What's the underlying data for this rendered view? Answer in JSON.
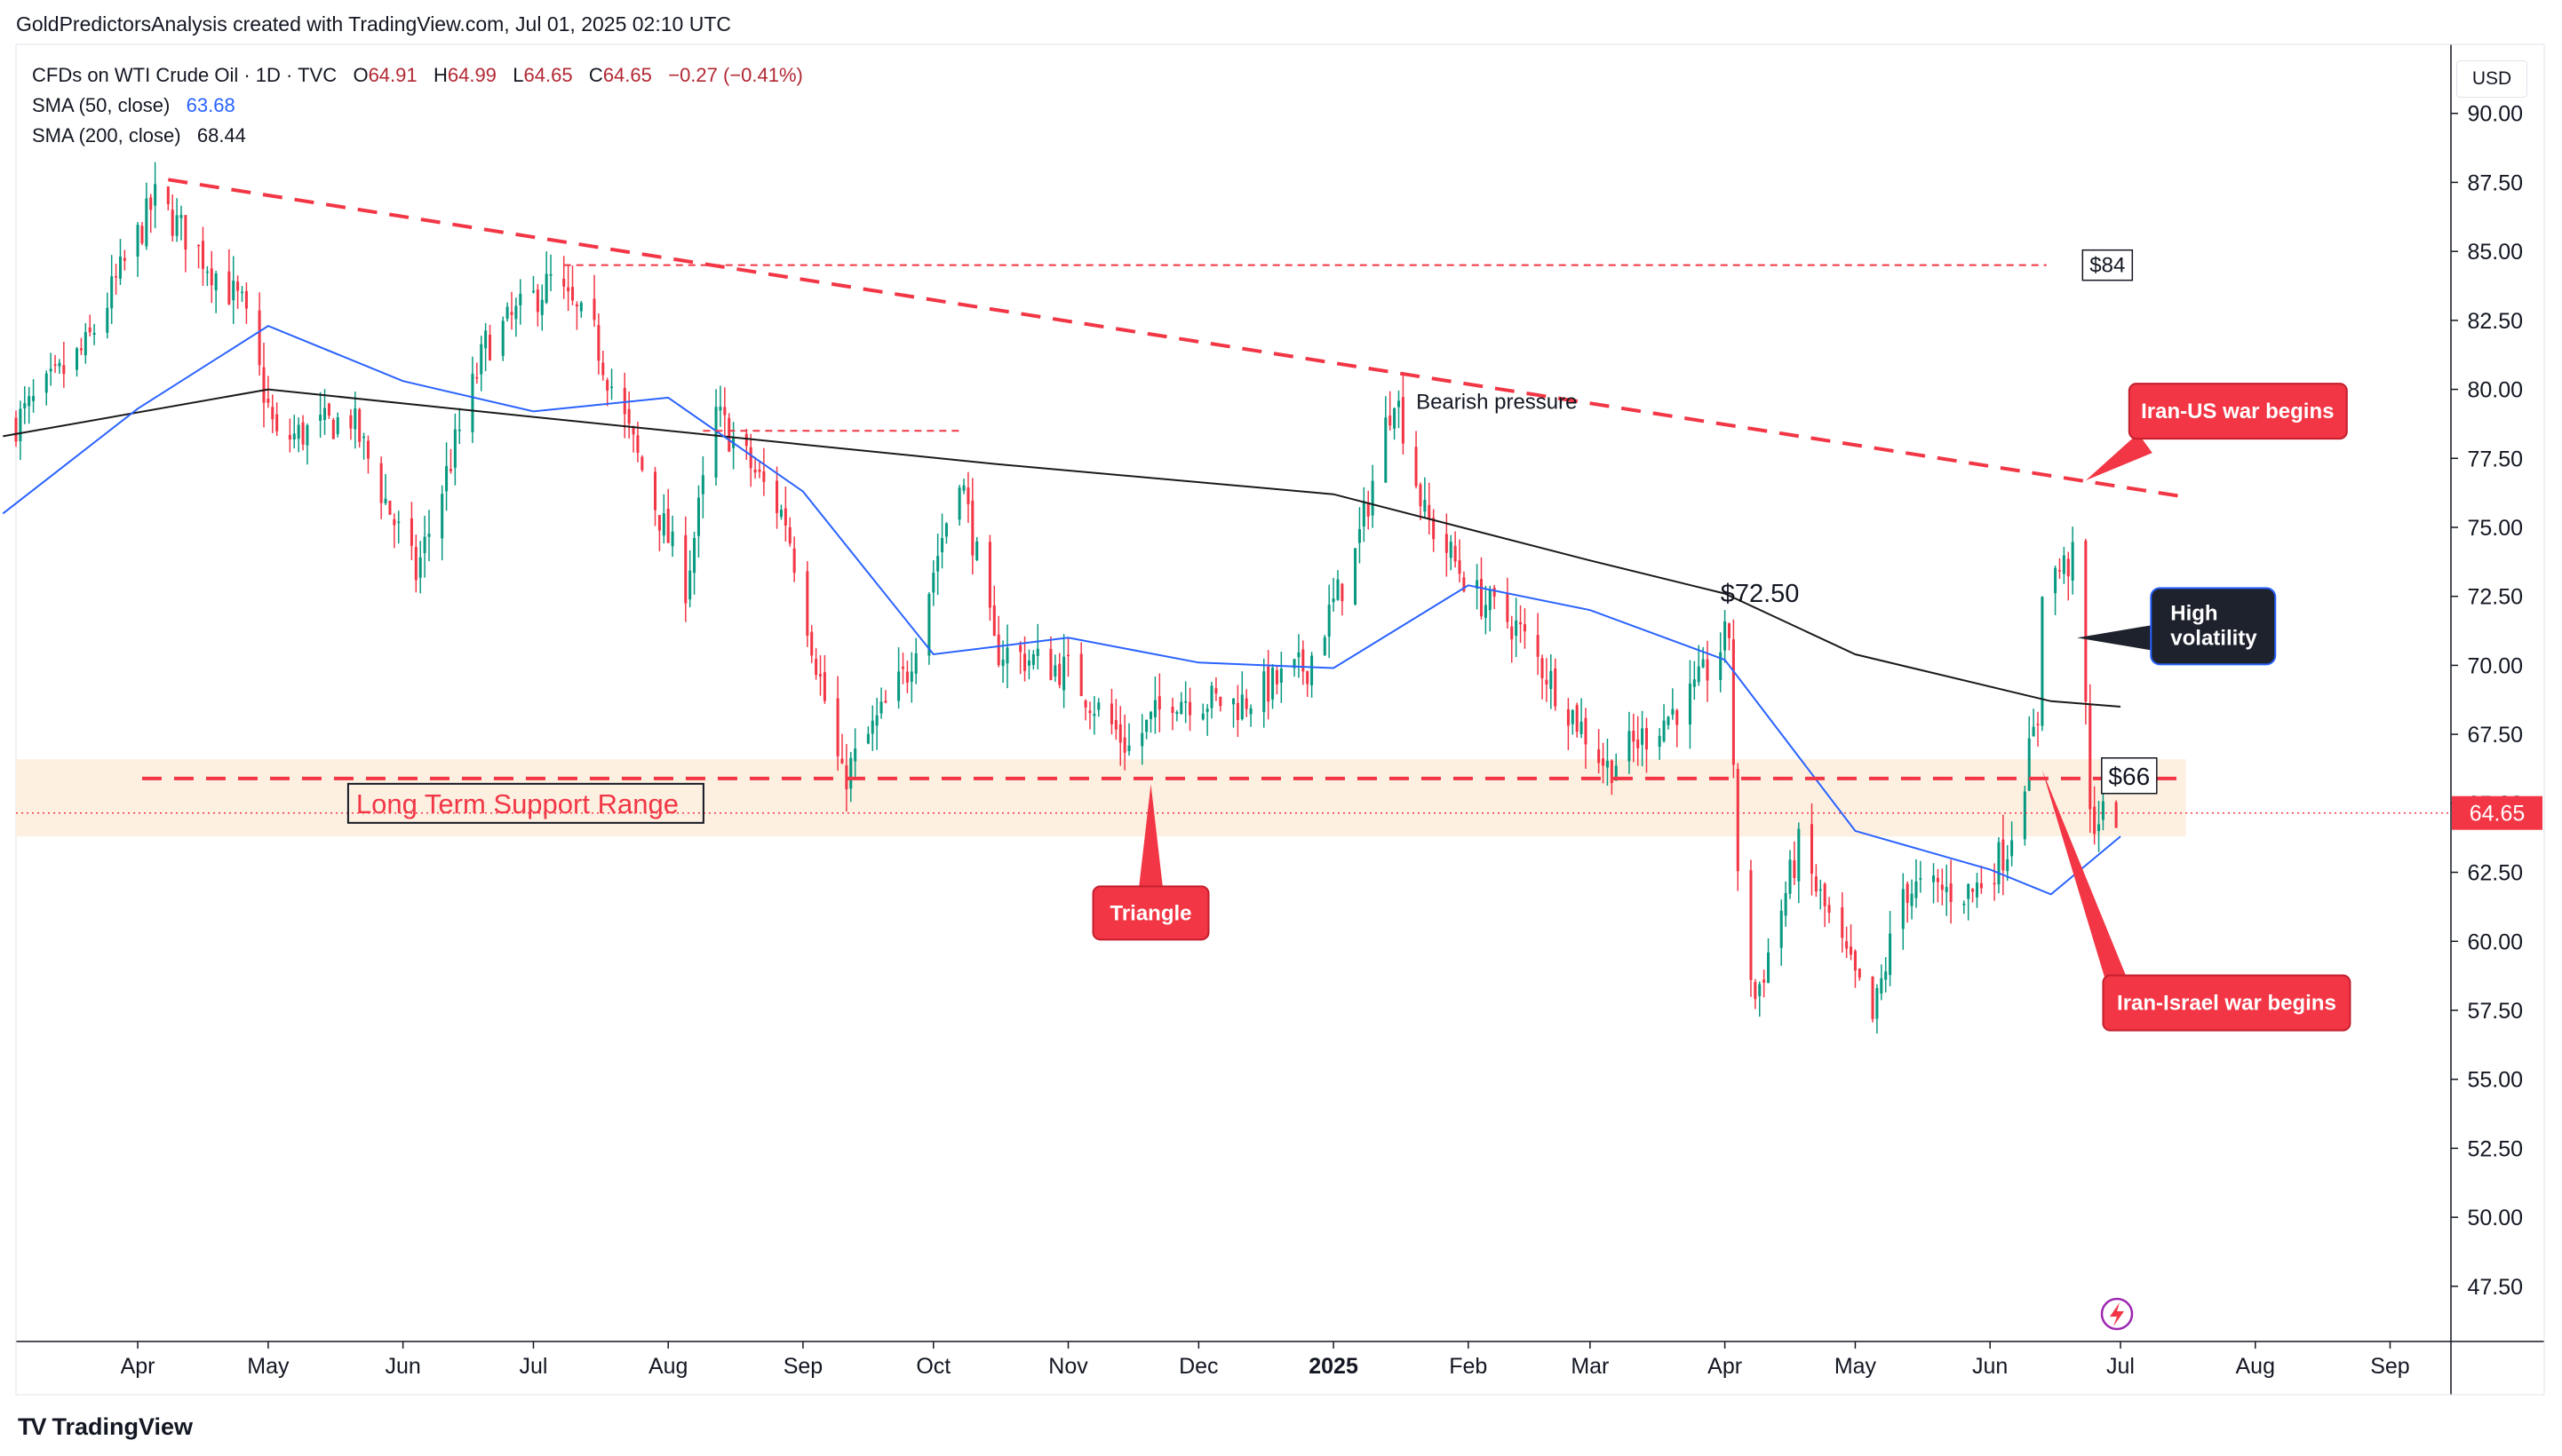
{
  "header": {
    "attribution": "GoldPredictorsAnalysis created with TradingView.com, Jul 01, 2025 02:10 UTC"
  },
  "legend": {
    "symbol": "CFDs on WTI Crude Oil · 1D · TVC",
    "o_label": "O",
    "o_value": "64.91",
    "h_label": "H",
    "h_value": "64.99",
    "l_label": "L",
    "l_value": "64.65",
    "c_label": "C",
    "c_value": "64.65",
    "change": "−0.27 (−0.41%)",
    "sma50_label": "SMA (50, close)",
    "sma50_value": "63.68",
    "sma200_label": "SMA (200, close)",
    "sma200_value": "68.44"
  },
  "currency_button": "USD",
  "footer": {
    "logo_mark": "TV",
    "brand": "TradingView"
  },
  "colors": {
    "up": "#089981",
    "down": "#f23645",
    "sma50": "#2962ff",
    "sma200": "#1a1a1a",
    "annotation_red": "#f23645",
    "annotation_dark": "#1e222d",
    "support_band": "#fdf0e1"
  },
  "chart_data": {
    "type": "candlestick",
    "title": "CFDs on WTI Crude Oil · 1D · TVC",
    "ylim": [
      45.5,
      92.5
    ],
    "y_ticks": [
      "90.00",
      "87.50",
      "85.00",
      "82.50",
      "80.00",
      "77.50",
      "75.00",
      "72.50",
      "70.00",
      "67.50",
      "65.00",
      "62.50",
      "60.00",
      "57.50",
      "55.00",
      "52.50",
      "50.00",
      "47.50"
    ],
    "x_ticks": [
      "Apr",
      "May",
      "Jun",
      "Jul",
      "Aug",
      "Sep",
      "Oct",
      "Nov",
      "Dec",
      "2025",
      "Feb",
      "Mar",
      "Apr",
      "May",
      "Jun",
      "Jul",
      "Aug",
      "Sep"
    ],
    "x_tick_dates": [
      "2024-04-01",
      "2024-05-01",
      "2024-06-01",
      "2024-07-01",
      "2024-08-01",
      "2024-09-01",
      "2024-10-01",
      "2024-11-01",
      "2024-12-01",
      "2025-01-01",
      "2025-02-01",
      "2025-03-01",
      "2025-04-01",
      "2025-05-01",
      "2025-06-01",
      "2025-07-01",
      "2025-08-01",
      "2025-09-01"
    ],
    "x_range": [
      "2024-03-04",
      "2025-09-15"
    ],
    "last_price": "64.65",
    "price_anchors": [
      [
        "2024-03-01",
        78.3
      ],
      [
        "2024-03-20",
        81.5
      ],
      [
        "2024-04-05",
        86.9
      ],
      [
        "2024-04-12",
        85.6
      ],
      [
        "2024-04-25",
        83.0
      ],
      [
        "2024-05-03",
        78.1
      ],
      [
        "2024-05-20",
        79.0
      ],
      [
        "2024-06-04",
        73.3
      ],
      [
        "2024-06-20",
        81.6
      ],
      [
        "2024-07-05",
        83.9
      ],
      [
        "2024-07-15",
        81.9
      ],
      [
        "2024-07-25",
        77.5
      ],
      [
        "2024-08-05",
        72.9
      ],
      [
        "2024-08-12",
        79.1
      ],
      [
        "2024-08-28",
        75.3
      ],
      [
        "2024-09-10",
        65.8
      ],
      [
        "2024-09-25",
        69.8
      ],
      [
        "2024-10-07",
        77.1
      ],
      [
        "2024-10-15",
        70.6
      ],
      [
        "2024-11-01",
        69.8
      ],
      [
        "2024-11-15",
        67.0
      ],
      [
        "2024-11-25",
        68.9
      ],
      [
        "2024-12-10",
        68.6
      ],
      [
        "2024-12-26",
        70.0
      ],
      [
        "2025-01-06",
        74.0
      ],
      [
        "2025-01-15",
        80.0
      ],
      [
        "2025-01-22",
        75.4
      ],
      [
        "2025-02-03",
        72.5
      ],
      [
        "2025-02-12",
        71.4
      ],
      [
        "2025-03-05",
        66.3
      ],
      [
        "2025-03-25",
        69.0
      ],
      [
        "2025-04-02",
        71.2
      ],
      [
        "2025-04-04",
        62.0
      ],
      [
        "2025-04-08",
        57.9
      ],
      [
        "2025-04-18",
        63.4
      ],
      [
        "2025-05-05",
        57.1
      ],
      [
        "2025-05-12",
        61.9
      ],
      [
        "2025-05-28",
        61.8
      ],
      [
        "2025-06-05",
        63.4
      ],
      [
        "2025-06-12",
        68.1
      ],
      [
        "2025-06-13",
        73.0
      ],
      [
        "2025-06-20",
        73.8
      ],
      [
        "2025-06-23",
        68.5
      ],
      [
        "2025-06-24",
        64.4
      ],
      [
        "2025-06-30",
        64.65
      ]
    ],
    "series": [
      {
        "name": "SMA (50, close)",
        "color": "#2962ff",
        "points": [
          [
            "2024-03-01",
            75.5
          ],
          [
            "2024-04-01",
            79.3
          ],
          [
            "2024-05-01",
            82.3
          ],
          [
            "2024-06-01",
            80.3
          ],
          [
            "2024-07-01",
            79.2
          ],
          [
            "2024-08-01",
            79.7
          ],
          [
            "2024-09-01",
            76.3
          ],
          [
            "2024-10-01",
            70.4
          ],
          [
            "2024-11-01",
            71.0
          ],
          [
            "2024-12-01",
            70.1
          ],
          [
            "2025-01-01",
            69.9
          ],
          [
            "2025-02-01",
            72.9
          ],
          [
            "2025-03-01",
            72.0
          ],
          [
            "2025-04-01",
            70.2
          ],
          [
            "2025-05-01",
            64.0
          ],
          [
            "2025-06-01",
            62.6
          ],
          [
            "2025-06-15",
            61.7
          ],
          [
            "2025-07-01",
            63.8
          ]
        ]
      },
      {
        "name": "SMA (200, close)",
        "color": "#1a1a1a",
        "points": [
          [
            "2024-03-01",
            78.3
          ],
          [
            "2024-05-01",
            80.0
          ],
          [
            "2024-07-01",
            79.0
          ],
          [
            "2024-09-01",
            78.0
          ],
          [
            "2024-10-15",
            77.3
          ],
          [
            "2025-01-01",
            76.2
          ],
          [
            "2025-03-01",
            73.8
          ],
          [
            "2025-04-01",
            72.6
          ],
          [
            "2025-05-01",
            70.4
          ],
          [
            "2025-06-15",
            68.7
          ],
          [
            "2025-07-01",
            68.5
          ]
        ]
      }
    ],
    "annotations": {
      "resistance_84": "$84",
      "level_66": "$66",
      "level_7250": "$72.50",
      "bearish": "Bearish pressure",
      "support_range": "Long Term Support Range",
      "triangle": "Triangle",
      "high_volatility_line1": "High",
      "high_volatility_line2": "volatility",
      "iran_us": "Iran-US war begins",
      "iran_israel": "Iran-Israel war begins"
    }
  }
}
